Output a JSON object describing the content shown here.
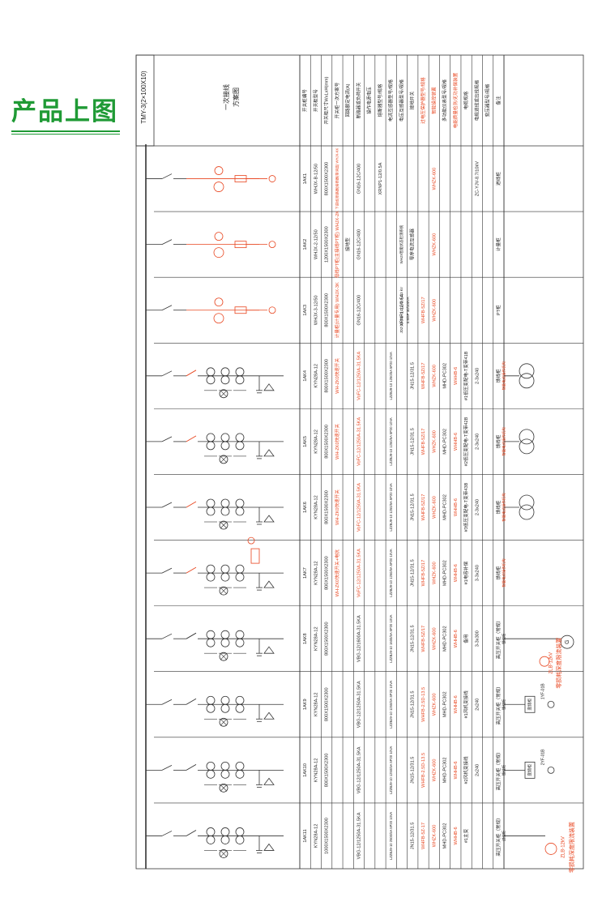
{
  "heading": "产品上图",
  "busbar": "TMY-3(2×100X10)",
  "side_label": [
    "一次接线",
    "方案图"
  ],
  "row_labels": [
    "开关柜编号",
    "开关柜型号",
    "开关柜尺寸WxLxH(mm)",
    "开关柜一次方案号",
    "回路额定电流(A)",
    "断路器或负荷开关",
    "操作电源电压",
    "熔断器型号/规格",
    "电流互感器型号/规格",
    "电压互感器型号/规格",
    "接地开关",
    "过电压保护器型号/规格",
    "智能操控装置",
    "多功能仪表型号/规格",
    "电能质量检测/无功补偿装置",
    "电缆规格",
    "电缆进线或出线规格",
    "变压器型号/规格",
    "备注"
  ],
  "red_rows": [
    11,
    12,
    14
  ],
  "columns": [
    {
      "id": "1AK1",
      "model": "WHJX-B-12/50",
      "size": "800X1500X2300",
      "scheme": "下进线(断路器)熔断器(带消谐) WHJX-KK",
      "current": "",
      "breaker": "GN16-12C/400",
      "ct": "",
      "vt": "",
      "fuse": "XRNP1-12/0.5A",
      "ground": "",
      "arrester": "",
      "smart": "WHZK-600",
      "meter": "",
      "pq": "",
      "cable": "",
      "cable2": "ZC-YJV-8.7/10kV",
      "trans": "",
      "note": "进线柜",
      "extra": []
    },
    {
      "id": "1AK2",
      "model": "WHJX-2-12/50",
      "size": "1200X1500X2300",
      "scheme": "母线PT柜(主接线PT柜) WHJX-2K",
      "current": "接地型",
      "breaker": "GN16-12C/400",
      "ct": "",
      "vt": "",
      "fuse": "",
      "ground": "零序电流互感器",
      "arrester": "",
      "smart": "WHZK-600",
      "meter": "",
      "pq": "",
      "cable": "",
      "cable2": "",
      "trans": "",
      "note": "计量柜",
      "extra": [
        "WHJX智能状态检测系统"
      ]
    },
    {
      "id": "1AK3",
      "model": "WHJX-3-12/50",
      "size": "800X1500X2300",
      "scheme": "计量柜(计量专用) WHJX-3K",
      "current": "",
      "breaker": "GN16-12C/400",
      "ct": "",
      "vt": "XRNP1-12/0.5A",
      "fuse": "",
      "ground": "",
      "arrester": "WHFB-5Z/17",
      "smart": "WHZK-600",
      "meter": "",
      "pq": "",
      "cable": "",
      "cable2": "",
      "trans": "",
      "note": "PT柜",
      "extra": [
        "JDZ-10 10/√3 0.1/√3 0.1/3 kV",
        "0.5/6P 30/100VA"
      ]
    },
    {
      "id": "1AK4",
      "model": "KYN28A-12",
      "size": "800X1500X2300",
      "scheme": "WH-ZK0快速开关",
      "current": "",
      "breaker": "VoFC-12/1250A-31.5KA",
      "ct": "LZZBJ9-10 1250/5A 5P20 10VA",
      "vt": "",
      "fuse": "",
      "ground": "JN15-12/31.5",
      "arrester": "WHFB-5Z/17",
      "smart": "WHZK-600",
      "meter": "MHD-PC302",
      "pq": "WHHB-6",
      "cable": "#1低压变配电-T变带41B",
      "cable2": "2-3x240",
      "trans": "",
      "note": "馈线柜",
      "extra": [
        "智能电动操作机构"
      ]
    },
    {
      "id": "1AK5",
      "model": "KYN28A-12",
      "size": "800X1500X2300",
      "scheme": "WH-ZK0快速开关",
      "current": "",
      "breaker": "VoFC-12/1250A-31.5KA",
      "ct": "LZZBJ9-10 1250/5A 5P20 10VA",
      "vt": "",
      "fuse": "",
      "ground": "JN15-12/31.5",
      "arrester": "WHFB-5Z/17",
      "smart": "WHZK-600",
      "meter": "MHD-PC302",
      "pq": "WHHB-6",
      "cable": "#2低压变配电-T变带42B",
      "cable2": "2-3x240",
      "trans": "",
      "note": "馈线柜",
      "extra": [
        "智能电动操作机构"
      ]
    },
    {
      "id": "1AK6",
      "model": "KYN28A-12",
      "size": "800X1500X2300",
      "scheme": "WH-ZK0快速开关",
      "current": "",
      "breaker": "VoFC-12/1250A-31.5KA",
      "ct": "LZZBJ9-10 1250/5A 5P20 10VA",
      "vt": "",
      "fuse": "",
      "ground": "JN15-12/31.5",
      "arrester": "WHFB-5Z/17",
      "smart": "WHZK-600",
      "meter": "MHD-PC302",
      "pq": "WHHB-6",
      "cable": "#3低压变配电-T变带43B",
      "cable2": "2-3x240",
      "trans": "",
      "note": "馈线柜",
      "extra": [
        "智能电动操作机构"
      ]
    },
    {
      "id": "1AK7",
      "model": "KYN28A-12",
      "size": "800X1500X2300",
      "scheme": "WH-ZK0快速开关+电抗",
      "current": "",
      "breaker": "VoFC-12/1250A-31.5KA",
      "ct": "LZZBJ9-10 1250/5A 5P20 10VA",
      "vt": "",
      "fuse": "",
      "ground": "JN15-12/31.5",
      "arrester": "WHFB-5Z/17",
      "smart": "WHZK-600",
      "meter": "MHD-PC302",
      "pq": "WHHB-6",
      "cable": "#1电容补偿",
      "cable2": "3-3x240",
      "trans": "",
      "note": "馈线柜",
      "extra": [
        "智能电动操作机构"
      ]
    },
    {
      "id": "1AK8",
      "model": "KYN28A-12",
      "size": "800X1500X2300",
      "scheme": "",
      "current": "",
      "breaker": "VBG-12/1600A-31.5KA",
      "ct": "LZZBJ9-10 1600/5A 5P20 10VA",
      "vt": "",
      "fuse": "",
      "ground": "JN15-12/31.5",
      "arrester": "WHFB-5Z/17",
      "smart": "WHZK-600",
      "meter": "MHD-PC302",
      "pq": "WHHB-6",
      "cable": "备用",
      "cable2": "3-3x300",
      "trans": "",
      "note": "高压开关柜（常规）",
      "extra": [
        "馈线柜"
      ]
    },
    {
      "id": "1AK9",
      "model": "KYN28A-12",
      "size": "800X1500X2300",
      "scheme": "",
      "current": "",
      "breaker": "VBG-12/1250A-31.5KA",
      "ct": "LZZBJ9-10 1250/5A 5P20 10VA",
      "vt": "",
      "fuse": "",
      "ground": "JN15-12/31.5",
      "arrester": "WHFB-2.5D-13.5",
      "smart": "WHZK-600",
      "meter": "MHD-PC302",
      "pq": "WHHB-6",
      "cable": "#1风机变接线",
      "cable2": "2x240",
      "trans": "",
      "note": "高压开关柜（常规）",
      "extra": [
        "馈线柜"
      ]
    },
    {
      "id": "1AK10",
      "model": "KYN28A-12",
      "size": "800X1500X2300",
      "scheme": "",
      "current": "",
      "breaker": "VBG-12/1250A-31.5KA",
      "ct": "LZZBJ9-10 1250/5A 5P20 10VA",
      "vt": "",
      "fuse": "",
      "ground": "JN15-12/31.5",
      "arrester": "WHFB-2.5D-13.5",
      "smart": "WHZK-600",
      "meter": "MHD-PC302",
      "pq": "WHHB-6",
      "cable": "#2风机变接线",
      "cable2": "2x240",
      "trans": "",
      "note": "高压开关柜（常规）",
      "extra": [
        "馈线柜"
      ]
    },
    {
      "id": "1AK11",
      "model": "KYN28A-12",
      "size": "1000X1500X2300",
      "scheme": "",
      "current": "",
      "breaker": "VBG-12/1250A-31.5KA",
      "ct": "LZZBJ9-10 2500/5A 5P20 10VA",
      "vt": "",
      "fuse": "",
      "ground": "JN15-12/31.5",
      "arrester": "WHFB-5Z-17",
      "smart": "WHZK-600",
      "meter": "MHD-PC302",
      "pq": "WHHB-6",
      "cable": "#1主变",
      "cable2": "",
      "trans": "",
      "note": "高压开关柜（常规）",
      "extra": [
        "进线柜"
      ]
    }
  ],
  "right_annotations": [
    "ZLB-12kV",
    "零损耗深度限流装置"
  ],
  "mid_annotations": [
    "ZLB-12kV",
    "零损耗深度限流装置"
  ],
  "gen_label": "G",
  "right_labels": [
    "变频柜",
    "1YF-01B",
    "变频柜",
    "2YF-01B"
  ],
  "colors": {
    "green": "#1f9a35",
    "red": "#e8451f",
    "line": "#333333"
  }
}
